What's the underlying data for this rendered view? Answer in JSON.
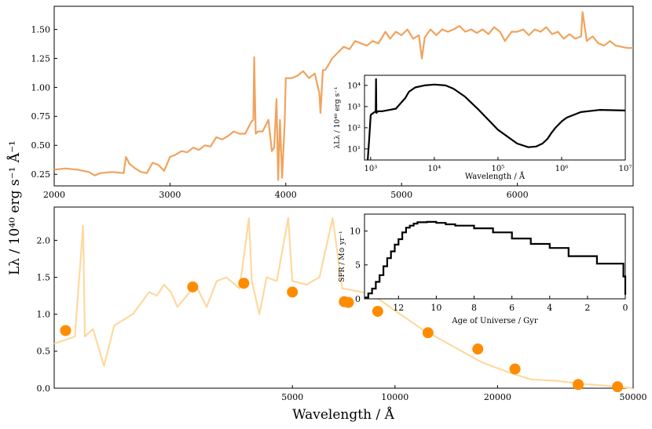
{
  "figure": {
    "ylabel_shared": "Lλ / 10⁴⁰ erg s⁻¹ Å⁻¹",
    "xlabel_shared": "Wavelength / Å"
  },
  "colors": {
    "top_spectrum": "#f0a35e",
    "bottom_spectrum": "#fdd9a0",
    "photometry": "#ff8c00",
    "inset_line": "#000000"
  },
  "chart_data": [
    {
      "id": "top",
      "type": "line",
      "xlim": [
        2000,
        7000
      ],
      "ylim": [
        0.15,
        1.7
      ],
      "xticks": [
        2000,
        3000,
        4000,
        5000,
        6000
      ],
      "yticks": [
        0.25,
        0.5,
        0.75,
        1.0,
        1.25,
        1.5
      ],
      "ytick_labels": [
        "0.25",
        "0.50",
        "0.75",
        "1.00",
        "1.25",
        "1.50"
      ],
      "series": [
        {
          "color": "#f0a35e",
          "x": [
            2000,
            2100,
            2200,
            2300,
            2350,
            2400,
            2500,
            2600,
            2620,
            2650,
            2700,
            2750,
            2800,
            2850,
            2900,
            2950,
            3000,
            3050,
            3100,
            3150,
            3200,
            3250,
            3300,
            3350,
            3400,
            3450,
            3500,
            3550,
            3600,
            3650,
            3700,
            3720,
            3727,
            3740,
            3760,
            3800,
            3850,
            3880,
            3900,
            3920,
            3934,
            3950,
            3968,
            3990,
            4000,
            4050,
            4100,
            4150,
            4200,
            4250,
            4290,
            4300,
            4320,
            4340,
            4360,
            4400,
            4450,
            4500,
            4550,
            4600,
            4650,
            4700,
            4750,
            4800,
            4861,
            4900,
            4950,
            5000,
            5050,
            5100,
            5150,
            5175,
            5200,
            5250,
            5300,
            5350,
            5400,
            5450,
            5500,
            5550,
            5600,
            5650,
            5700,
            5750,
            5800,
            5850,
            5893,
            5950,
            6000,
            6050,
            6100,
            6150,
            6200,
            6250,
            6300,
            6350,
            6400,
            6450,
            6500,
            6550,
            6563,
            6600,
            6650,
            6700,
            6750,
            6800,
            6850,
            6900,
            6950,
            7000
          ],
          "y": [
            0.29,
            0.3,
            0.29,
            0.27,
            0.24,
            0.26,
            0.27,
            0.26,
            0.4,
            0.34,
            0.3,
            0.27,
            0.26,
            0.35,
            0.33,
            0.28,
            0.4,
            0.42,
            0.45,
            0.44,
            0.48,
            0.46,
            0.5,
            0.49,
            0.57,
            0.55,
            0.58,
            0.62,
            0.6,
            0.6,
            0.7,
            0.72,
            1.26,
            0.6,
            0.62,
            0.62,
            0.72,
            0.45,
            0.48,
            0.9,
            0.2,
            0.72,
            0.22,
            0.68,
            1.08,
            1.08,
            1.1,
            1.14,
            1.08,
            1.12,
            0.95,
            0.78,
            1.15,
            1.15,
            1.18,
            1.25,
            1.3,
            1.35,
            1.33,
            1.4,
            1.38,
            1.36,
            1.4,
            1.38,
            1.48,
            1.42,
            1.48,
            1.45,
            1.5,
            1.42,
            1.45,
            1.25,
            1.43,
            1.5,
            1.45,
            1.5,
            1.48,
            1.5,
            1.53,
            1.48,
            1.5,
            1.47,
            1.5,
            1.46,
            1.52,
            1.48,
            1.4,
            1.48,
            1.48,
            1.5,
            1.45,
            1.5,
            1.48,
            1.52,
            1.46,
            1.48,
            1.42,
            1.46,
            1.42,
            1.44,
            1.65,
            1.4,
            1.44,
            1.38,
            1.36,
            1.4,
            1.36,
            1.35,
            1.34,
            1.34
          ]
        }
      ]
    },
    {
      "id": "bottom",
      "type": "line",
      "xlim": [
        1000,
        50000
      ],
      "ylim": [
        0.0,
        2.45
      ],
      "xticks": [
        5000,
        10000,
        20000,
        50000
      ],
      "xscale": "log",
      "yticks": [
        0.0,
        0.5,
        1.0,
        1.5,
        2.0
      ],
      "ytick_labels": [
        "0.0",
        "0.5",
        "1.0",
        "1.5",
        "2.0"
      ],
      "series": [
        {
          "color": "#fdd9a0",
          "x": [
            1000,
            1150,
            1216,
            1230,
            1300,
            1400,
            1500,
            1700,
            1900,
            2000,
            2100,
            2200,
            2300,
            2500,
            2600,
            2800,
            3000,
            3200,
            3500,
            3727,
            3800,
            4000,
            4200,
            4500,
            4861,
            5000,
            5500,
            6000,
            6563,
            7000,
            8000,
            9000,
            10000,
            12000,
            15000,
            18000,
            20000,
            22000,
            25000,
            30000,
            35000,
            40000,
            45000,
            50000
          ],
          "y": [
            0.6,
            0.7,
            2.2,
            0.7,
            0.8,
            0.3,
            0.85,
            1.0,
            1.3,
            1.25,
            1.4,
            1.3,
            1.1,
            1.3,
            1.4,
            1.1,
            1.45,
            1.5,
            1.35,
            2.3,
            1.45,
            1.0,
            1.5,
            1.45,
            2.3,
            1.45,
            1.4,
            1.5,
            2.3,
            1.35,
            1.3,
            1.2,
            1.05,
            0.8,
            0.55,
            0.35,
            0.27,
            0.2,
            0.12,
            0.1,
            0.06,
            0.04,
            0.02,
            0.0
          ]
        }
      ],
      "scatter": {
        "color": "#ff8c00",
        "x": [
          1080,
          2550,
          3600,
          5000,
          7100,
          7300,
          8900,
          12500,
          17500,
          22500,
          34500,
          45000
        ],
        "y": [
          0.78,
          1.37,
          1.42,
          1.3,
          1.17,
          1.16,
          1.04,
          0.75,
          0.53,
          0.26,
          0.05,
          0.02
        ]
      }
    },
    {
      "id": "inset-top",
      "type": "line",
      "xscale": "log",
      "yscale": "log",
      "xlim": [
        800,
        10000000
      ],
      "ylim": [
        3,
        30000
      ],
      "xticks": [
        1000,
        10000,
        100000,
        1000000,
        10000000
      ],
      "xtick_labels": [
        "10³",
        "10⁴",
        "10⁵",
        "10⁶",
        "10⁷"
      ],
      "yticks": [
        10,
        100,
        1000,
        10000
      ],
      "ytick_labels": [
        "10¹",
        "10²",
        "10³",
        "10⁴"
      ],
      "xlabel": "Wavelength / Å",
      "ylabel": "λLλ / 10⁴⁰ erg s⁻¹",
      "series": [
        {
          "color": "#000000",
          "x": [
            900,
            950,
            1000,
            1100,
            1200,
            1216,
            1230,
            1300,
            1500,
            2000,
            2500,
            3000,
            3500,
            4000,
            5000,
            7000,
            10000,
            15000,
            20000,
            30000,
            50000,
            100000,
            200000,
            300000,
            400000,
            500000,
            600000,
            700000,
            800000,
            1000000,
            1200000,
            2000000,
            4000000,
            10000000
          ],
          "y": [
            3,
            30,
            400,
            500,
            600,
            20000,
            500,
            600,
            600,
            700,
            800,
            1500,
            2500,
            5000,
            8000,
            10000,
            11000,
            10000,
            7000,
            3000,
            700,
            80,
            18,
            12,
            13,
            18,
            30,
            60,
            100,
            200,
            300,
            550,
            700,
            650
          ]
        }
      ]
    },
    {
      "id": "inset-bottom",
      "type": "line",
      "xlim": [
        13.8,
        0
      ],
      "ylim": [
        0,
        12.5
      ],
      "xticks": [
        12,
        10,
        8,
        6,
        4,
        2,
        0
      ],
      "yticks": [
        0,
        5,
        10
      ],
      "xlabel": "Age of Universe / Gyr",
      "ylabel": "SFR / M⊙ yr⁻¹",
      "series": [
        {
          "color": "#000000",
          "x": [
            13.8,
            13.6,
            13.4,
            13.2,
            13.0,
            12.8,
            12.6,
            12.4,
            12.2,
            12.0,
            11.8,
            11.6,
            11.4,
            11.2,
            11.0,
            10.5,
            10.0,
            9.5,
            9.0,
            8.0,
            7.0,
            6.0,
            5.0,
            4.0,
            3.0,
            1.5,
            0.1,
            0.0
          ],
          "y": [
            0.2,
            0.8,
            1.5,
            2.5,
            3.5,
            4.8,
            6.0,
            7.0,
            8.0,
            8.8,
            9.8,
            10.5,
            10.8,
            11.1,
            11.3,
            11.35,
            11.2,
            11.0,
            10.8,
            10.4,
            9.8,
            8.9,
            8.1,
            7.5,
            6.3,
            5.2,
            3.3,
            0.6
          ]
        }
      ]
    }
  ]
}
